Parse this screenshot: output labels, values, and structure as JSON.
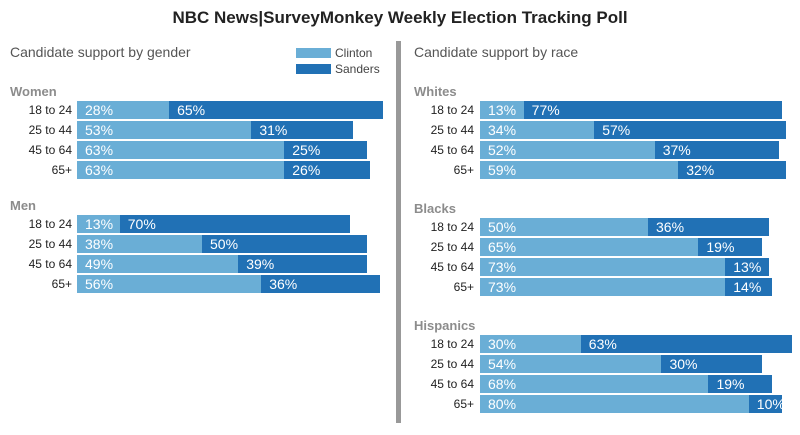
{
  "colors": {
    "clinton": "#6aaed6",
    "sanders": "#2171b5",
    "divider": "#999999"
  },
  "chart_data": {
    "type": "bar",
    "title": "NBC News|SurveyMonkey Weekly Election Tracking Poll",
    "legend": [
      {
        "name": "Clinton",
        "color": "#6aaed6"
      },
      {
        "name": "Sanders",
        "color": "#2171b5"
      }
    ],
    "legend_position": "top-center",
    "panels": [
      {
        "subtitle": "Candidate support by gender",
        "groups": [
          {
            "label": "Women",
            "categories": [
              "18 to 24",
              "25 to 44",
              "45 to 64",
              "65+"
            ],
            "series": [
              {
                "name": "Clinton",
                "values": [
                  28,
                  53,
                  63,
                  63
                ]
              },
              {
                "name": "Sanders",
                "values": [
                  65,
                  31,
                  25,
                  26
                ]
              }
            ]
          },
          {
            "label": "Men",
            "categories": [
              "18 to 24",
              "25 to 44",
              "45 to 64",
              "65+"
            ],
            "series": [
              {
                "name": "Clinton",
                "values": [
                  13,
                  38,
                  49,
                  56
                ]
              },
              {
                "name": "Sanders",
                "values": [
                  70,
                  50,
                  39,
                  36
                ]
              }
            ]
          }
        ]
      },
      {
        "subtitle": "Candidate support by race",
        "groups": [
          {
            "label": "Whites",
            "categories": [
              "18 to 24",
              "25 to 44",
              "45 to 64",
              "65+"
            ],
            "series": [
              {
                "name": "Clinton",
                "values": [
                  13,
                  34,
                  52,
                  59
                ]
              },
              {
                "name": "Sanders",
                "values": [
                  77,
                  57,
                  37,
                  32
                ]
              }
            ]
          },
          {
            "label": "Blacks",
            "categories": [
              "18 to 24",
              "25 to 44",
              "45 to 64",
              "65+"
            ],
            "series": [
              {
                "name": "Clinton",
                "values": [
                  50,
                  65,
                  73,
                  73
                ]
              },
              {
                "name": "Sanders",
                "values": [
                  36,
                  19,
                  13,
                  14
                ]
              }
            ]
          },
          {
            "label": "Hispanics",
            "categories": [
              "18 to 24",
              "25 to 44",
              "45 to 64",
              "65+"
            ],
            "series": [
              {
                "name": "Clinton",
                "values": [
                  30,
                  54,
                  68,
                  80
                ]
              },
              {
                "name": "Sanders",
                "values": [
                  63,
                  30,
                  19,
                  10
                ]
              }
            ]
          }
        ]
      }
    ]
  }
}
